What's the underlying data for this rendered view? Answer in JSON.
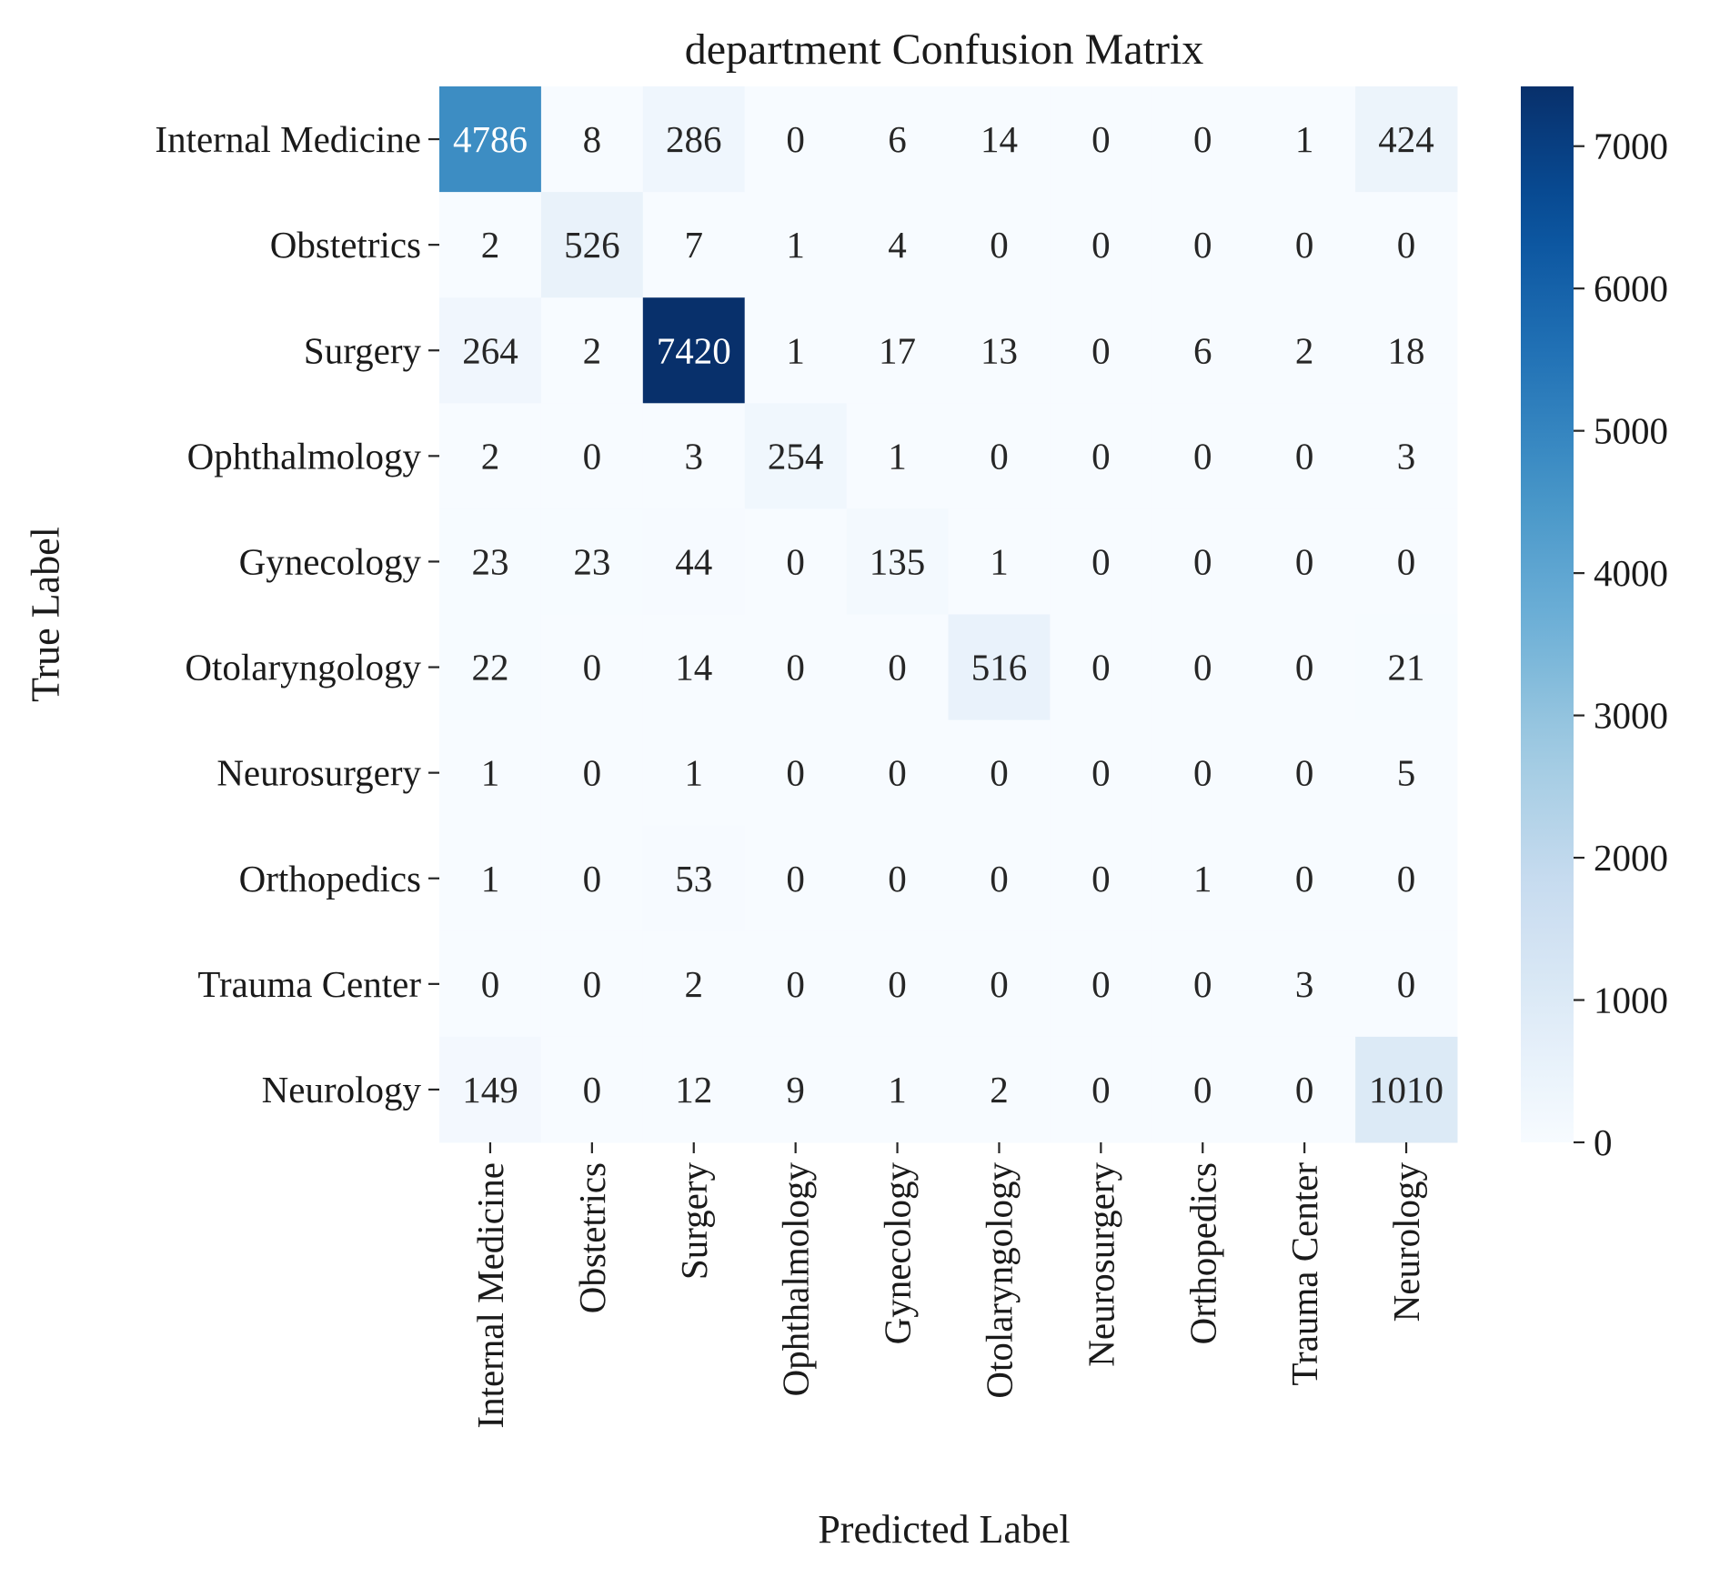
{
  "chart_data": {
    "type": "heatmap",
    "title": "department Confusion Matrix",
    "xlabel": "Predicted Label",
    "ylabel": "True Label",
    "x_categories": [
      "Internal Medicine",
      "Obstetrics",
      "Surgery",
      "Ophthalmology",
      "Gynecology",
      "Otolaryngology",
      "Neurosurgery",
      "Orthopedics",
      "Trauma Center",
      "Neurology"
    ],
    "y_categories": [
      "Internal Medicine",
      "Obstetrics",
      "Surgery",
      "Ophthalmology",
      "Gynecology",
      "Otolaryngology",
      "Neurosurgery",
      "Orthopedics",
      "Trauma Center",
      "Neurology"
    ],
    "values": [
      [
        4786,
        8,
        286,
        0,
        6,
        14,
        0,
        0,
        1,
        424
      ],
      [
        2,
        526,
        7,
        1,
        4,
        0,
        0,
        0,
        0,
        0
      ],
      [
        264,
        2,
        7420,
        1,
        17,
        13,
        0,
        6,
        2,
        18
      ],
      [
        2,
        0,
        3,
        254,
        1,
        0,
        0,
        0,
        0,
        3
      ],
      [
        23,
        23,
        44,
        0,
        135,
        1,
        0,
        0,
        0,
        0
      ],
      [
        22,
        0,
        14,
        0,
        0,
        516,
        0,
        0,
        0,
        21
      ],
      [
        1,
        0,
        1,
        0,
        0,
        0,
        0,
        0,
        0,
        5
      ],
      [
        1,
        0,
        53,
        0,
        0,
        0,
        0,
        1,
        0,
        0
      ],
      [
        0,
        0,
        2,
        0,
        0,
        0,
        0,
        0,
        3,
        0
      ],
      [
        149,
        0,
        12,
        9,
        1,
        2,
        0,
        0,
        0,
        1010
      ]
    ],
    "colormap": "Blues",
    "colorbar": {
      "range": [
        0,
        7420
      ],
      "ticks": [
        0,
        1000,
        2000,
        3000,
        4000,
        5000,
        6000,
        7000
      ]
    },
    "grid": false
  }
}
